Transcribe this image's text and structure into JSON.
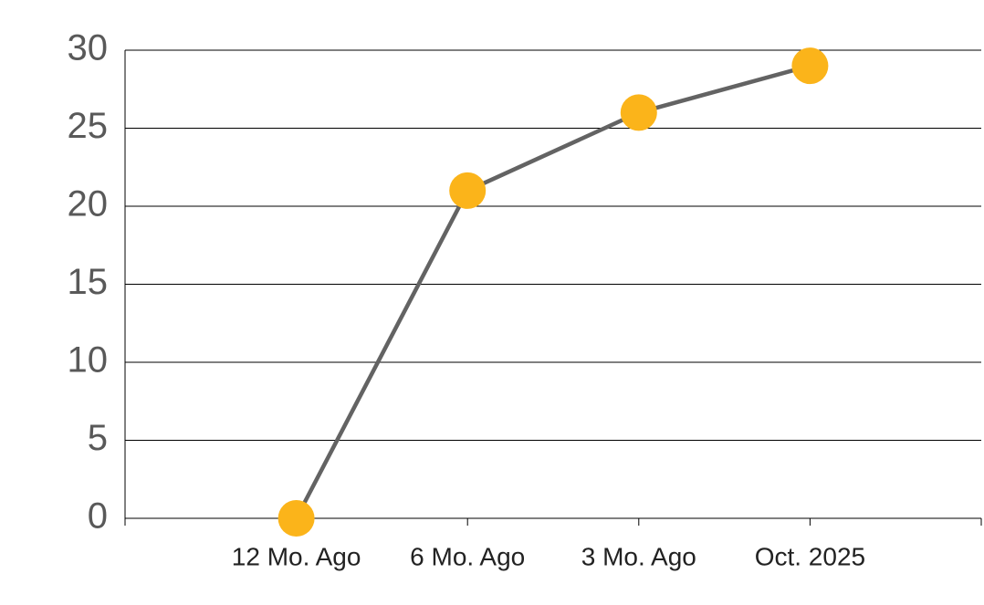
{
  "chart_data": {
    "type": "line",
    "categories": [
      "12 Mo. Ago",
      "6 Mo. Ago",
      "3 Mo. Ago",
      "Oct. 2025"
    ],
    "values": [
      0,
      21,
      26,
      29
    ],
    "line_color": "#636363",
    "marker_color": "#fbb41a",
    "ylim": [
      0,
      30
    ],
    "yticks": [
      0,
      5,
      10,
      15,
      20,
      25,
      30
    ],
    "grid": true
  }
}
